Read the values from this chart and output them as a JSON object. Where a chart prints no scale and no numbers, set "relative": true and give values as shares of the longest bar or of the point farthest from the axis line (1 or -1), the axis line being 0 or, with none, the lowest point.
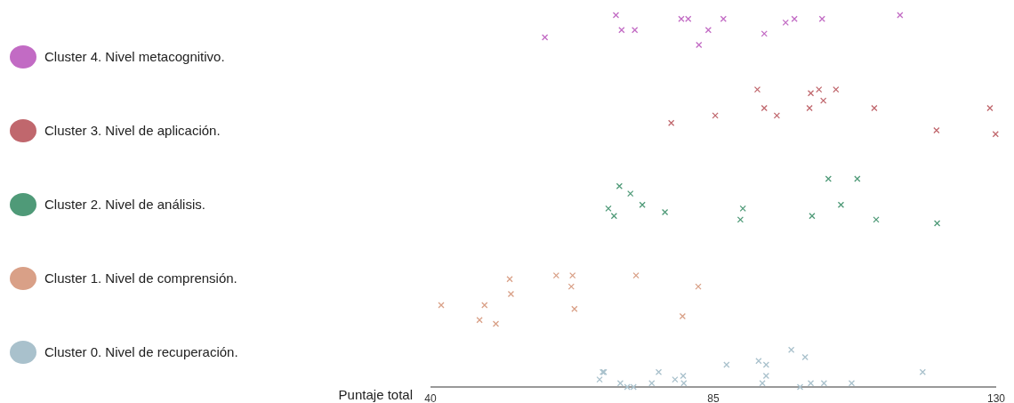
{
  "chart_data": {
    "type": "scatter",
    "xlabel": "Puntaje total",
    "xlim": [
      40,
      130
    ],
    "xticks": [
      40,
      85,
      130
    ],
    "relative": true,
    "tick_labels": "x",
    "legend": "left",
    "marker": "cross",
    "grid": false,
    "series": [
      {
        "name": "Cluster 4. Nivel metacognitivo.",
        "color": "#c26bc4",
        "x": [
          58.2,
          69.5,
          70.4,
          72.5,
          79.9,
          81.0,
          82.7,
          84.2,
          86.6,
          93.1,
          96.5,
          97.9,
          102.3,
          114.7
        ],
        "values": [
          0.94,
          1.0,
          0.96,
          0.96,
          0.99,
          0.99,
          0.92,
          0.96,
          0.99,
          0.95,
          0.98,
          0.99,
          0.99,
          1.0
        ]
      },
      {
        "name": "Cluster 3. Nivel de aplicación.",
        "color": "#c0676d",
        "x": [
          78.3,
          85.3,
          92.0,
          93.1,
          95.1,
          100.3,
          100.5,
          101.8,
          102.5,
          104.5,
          110.6,
          129.0,
          120.5,
          129.9
        ],
        "values": [
          0.71,
          0.73,
          0.8,
          0.75,
          0.73,
          0.75,
          0.79,
          0.8,
          0.77,
          0.8,
          0.75,
          0.75,
          0.69,
          0.68
        ]
      },
      {
        "name": "Cluster 2. Nivel de análisis.",
        "color": "#4f9a78",
        "x": [
          70.05,
          71.8,
          68.3,
          69.2,
          73.7,
          77.3,
          89.7,
          89.3,
          103.3,
          107.9,
          105.3,
          100.7,
          110.9,
          120.6
        ],
        "values": [
          0.54,
          0.52,
          0.48,
          0.46,
          0.49,
          0.47,
          0.48,
          0.45,
          0.56,
          0.56,
          0.49,
          0.46,
          0.45,
          0.44
        ]
      },
      {
        "name": "Cluster 1. Nivel de comprensión.",
        "color": "#d9a087",
        "x": [
          41.7,
          47.8,
          48.6,
          50.4,
          52.6,
          52.8,
          60.0,
          62.6,
          62.4,
          62.9,
          72.7,
          80.1,
          82.6
        ],
        "values": [
          0.22,
          0.18,
          0.22,
          0.17,
          0.29,
          0.25,
          0.3,
          0.3,
          0.27,
          0.21,
          0.3,
          0.19,
          0.27
        ]
      },
      {
        "name": "Cluster 0. Nivel de recuperación.",
        "color": "#a9c1cc",
        "x": [
          66.9,
          67.4,
          67.6,
          70.2,
          71.3,
          72.3,
          75.2,
          76.3,
          78.9,
          80.2,
          80.3,
          87.1,
          92.2,
          93.4,
          93.4,
          92.8,
          97.4,
          99.6,
          98.8,
          100.5,
          102.6,
          107.0,
          118.3
        ],
        "values": [
          0.02,
          0.04,
          0.04,
          0.01,
          0.0,
          0.0,
          0.01,
          0.04,
          0.02,
          0.03,
          0.01,
          0.06,
          0.07,
          0.06,
          0.03,
          0.01,
          0.1,
          0.08,
          0.0,
          0.01,
          0.01,
          0.01,
          0.04
        ]
      }
    ]
  }
}
